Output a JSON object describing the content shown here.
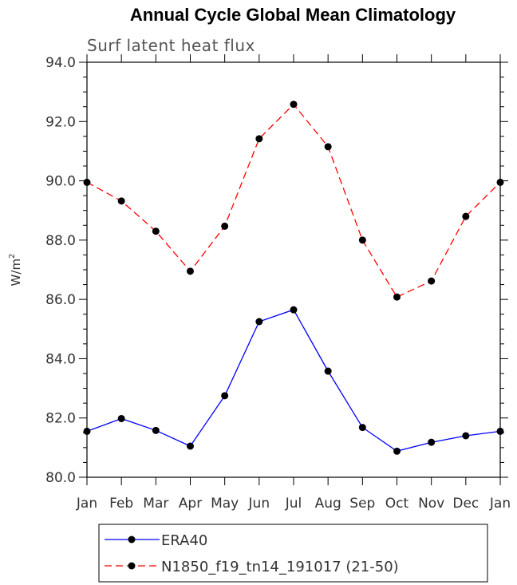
{
  "chart_data": {
    "type": "line",
    "title": "Annual Cycle Global Mean Climatology",
    "subtitle": "Surf latent heat flux",
    "ylabel": "W/m",
    "ylabel_superscript": "2",
    "xlabel": "",
    "categories": [
      "Jan",
      "Feb",
      "Mar",
      "Apr",
      "May",
      "Jun",
      "Jul",
      "Aug",
      "Sep",
      "Oct",
      "Nov",
      "Dec",
      "Jan"
    ],
    "ylim": [
      80.0,
      94.0
    ],
    "yticks": [
      "80.0",
      "82.0",
      "84.0",
      "86.0",
      "88.0",
      "90.0",
      "92.0",
      "94.0"
    ],
    "grid": false,
    "legend_position": "bottom",
    "series": [
      {
        "name": "ERA40",
        "color": "#0000ff",
        "line_style": "solid",
        "marker": "filled-circle",
        "values": [
          81.55,
          81.98,
          81.58,
          81.05,
          82.75,
          85.25,
          85.65,
          83.58,
          81.68,
          80.88,
          81.18,
          81.4,
          81.55
        ]
      },
      {
        "name": "N1850_f19_tn14_191017 (21-50)",
        "color": "#ff0000",
        "line_style": "dashed",
        "marker": "filled-circle",
        "values": [
          89.95,
          89.32,
          88.3,
          86.95,
          88.47,
          91.42,
          92.58,
          91.15,
          88.0,
          86.08,
          86.62,
          88.8,
          89.95
        ]
      }
    ]
  }
}
